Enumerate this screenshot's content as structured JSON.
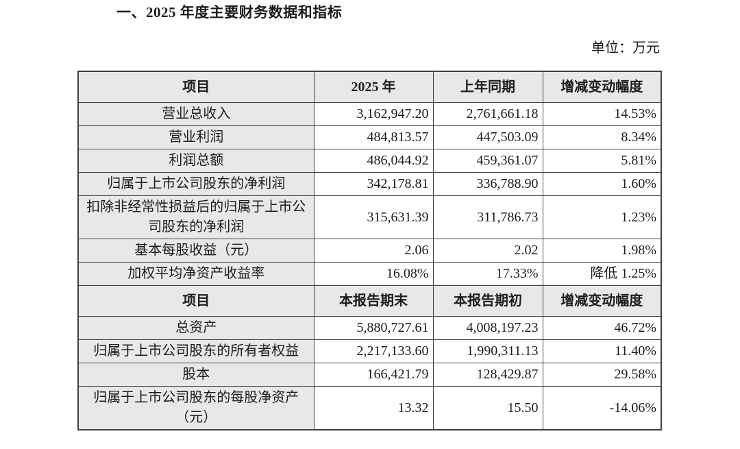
{
  "document": {
    "title": "一、2025 年度主要财务数据和指标",
    "unit_label": "单位：万元"
  },
  "table": {
    "sections": [
      {
        "headers": [
          "项目",
          "2025 年",
          "上年同期",
          "增减变动幅度"
        ],
        "rows": [
          {
            "item": "营业总收入",
            "values": [
              "3,162,947.20",
              "2,761,661.18",
              "14.53%"
            ]
          },
          {
            "item": "营业利润",
            "values": [
              "484,813.57",
              "447,503.09",
              "8.34%"
            ]
          },
          {
            "item": "利润总额",
            "values": [
              "486,044.92",
              "459,361.07",
              "5.81%"
            ]
          },
          {
            "item": "归属于上市公司股东的净利润",
            "values": [
              "342,178.81",
              "336,788.90",
              "1.60%"
            ]
          },
          {
            "item": "扣除非经常性损益后的归属于上市公司股东的净利润",
            "values": [
              "315,631.39",
              "311,786.73",
              "1.23%"
            ]
          },
          {
            "item": "基本每股收益（元）",
            "values": [
              "2.06",
              "2.02",
              "1.98%"
            ]
          },
          {
            "item": "加权平均净资产收益率",
            "values": [
              "16.08%",
              "17.33%",
              "降低 1.25%"
            ]
          }
        ]
      },
      {
        "headers": [
          "项目",
          "本报告期末",
          "本报告期初",
          "增减变动幅度"
        ],
        "rows": [
          {
            "item": "总资产",
            "values": [
              "5,880,727.61",
              "4,008,197.23",
              "46.72%"
            ]
          },
          {
            "item": "归属于上市公司股东的所有者权益",
            "values": [
              "2,217,133.60",
              "1,990,311.13",
              "11.40%"
            ]
          },
          {
            "item": "股本",
            "values": [
              "166,421.79",
              "128,429.87",
              "29.58%"
            ]
          },
          {
            "item": "归属于上市公司股东的每股净资产（元）",
            "values": [
              "13.32",
              "15.50",
              "-14.06%"
            ]
          }
        ]
      }
    ]
  }
}
